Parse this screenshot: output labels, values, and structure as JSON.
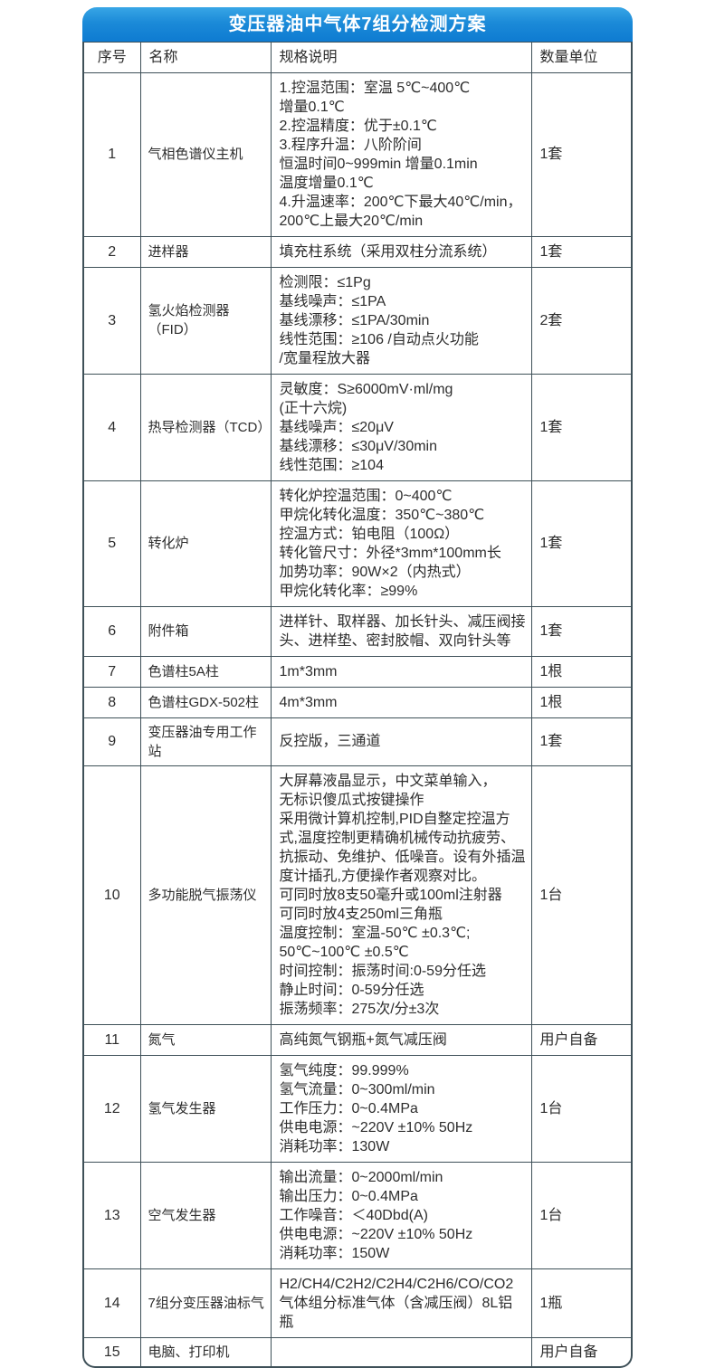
{
  "title": "变压器油中气体7组分检测方案",
  "columns": {
    "no": "序号",
    "name": "名称",
    "spec": "规格说明",
    "qty": "数量单位"
  },
  "colors": {
    "header_blue_top": "#38a6e6",
    "header_blue_bottom": "#0e7bd1",
    "grid_line": "#3e5058",
    "title_text": "#ffffff",
    "body_text": "#2d2d2d"
  },
  "rows": [
    {
      "no": "1",
      "name": "气相色谱仪主机",
      "spec": "1.控温范围：室温 5℃~400℃\n增量0.1℃\n2.控温精度：优于±0.1℃\n3.程序升温：八阶阶间\n恒温时间0~999min 增量0.1min\n温度增量0.1℃\n4.升温速率：200℃下最大40℃/min，\n200℃上最大20℃/min",
      "qty": "1套"
    },
    {
      "no": "2",
      "name": "进样器",
      "spec": "填充柱系统（采用双柱分流系统）",
      "qty": "1套"
    },
    {
      "no": "3",
      "name": "氢火焰检测器（FID）",
      "spec": "检测限：≤1Pg\n基线噪声：≤1PA\n基线漂移：≤1PA/30min\n线性范围：≥106 /自动点火功能\n/宽量程放大器",
      "qty": "2套"
    },
    {
      "no": "4",
      "name": "热导检测器（TCD）",
      "spec": "灵敏度：S≥6000mV·ml/mg\n(正十六烷)\n基线噪声：≤20μV\n基线漂移：≤30μV/30min\n线性范围：≥104",
      "qty": "1套"
    },
    {
      "no": "5",
      "name": "转化炉",
      "spec": "转化炉控温范围：0~400℃\n甲烷化转化温度：350℃~380℃\n控温方式：铂电阻（100Ω）\n转化管尺寸：外径*3mm*100mm长\n加势功率：90W×2（内热式）\n甲烷化转化率：≥99%",
      "qty": "1套"
    },
    {
      "no": "6",
      "name": "附件箱",
      "spec": "进样针、取样器、加长针头、减压阀接头、进样垫、密封胶帽、双向针头等",
      "qty": "1套"
    },
    {
      "no": "7",
      "name": "色谱柱5A柱",
      "spec": "1m*3mm",
      "qty": "1根"
    },
    {
      "no": "8",
      "name": "色谱柱GDX-502柱",
      "spec": "4m*3mm",
      "qty": "1根"
    },
    {
      "no": "9",
      "name": "变压器油专用工作站",
      "spec": "反控版，三通道",
      "qty": "1套"
    },
    {
      "no": "10",
      "name": "多功能脱气振荡仪",
      "spec": "大屏幕液晶显示，中文菜单输入，\n无标识傻瓜式按键操作\n采用微计算机控制,PID自整定控温方式,温度控制更精确机械传动抗疲劳、抗振动、免维护、低噪音。设有外插温度计插孔,方便操作者观察对比。\n可同时放8支50毫升或100ml注射器\n可同时放4支250ml三角瓶\n温度控制：室温-50℃ ±0.3℃;\n 50℃~100℃ ±0.5℃\n时间控制：振荡时间:0-59分任选\n静止时间：0-59分任选\n振荡频率：275次/分±3次",
      "qty": "1台"
    },
    {
      "no": "11",
      "name": "氮气",
      "spec": "高纯氮气钢瓶+氮气减压阀",
      "qty": "用户自备"
    },
    {
      "no": "12",
      "name": "氢气发生器",
      "spec": "氢气纯度：99.999%\n氢气流量：0~300ml/min\n工作压力：0~0.4MPa\n供电电源：~220V ±10% 50Hz\n消耗功率：130W",
      "qty": "1台"
    },
    {
      "no": "13",
      "name": "空气发生器",
      "spec": "输出流量：0~2000ml/min\n输出压力：0~0.4MPa\n工作噪音：＜40Dbd(A)\n供电电源：~220V ±10% 50Hz\n消耗功率：150W",
      "qty": "1台"
    },
    {
      "no": "14",
      "name": "7组分变压器油标气",
      "spec": "H2/CH4/C2H2/C2H4/C2H6/CO/CO2\n气体组分标准气体（含减压阀）8L铝瓶",
      "qty": "1瓶"
    },
    {
      "no": "15",
      "name": "电脑、打印机",
      "spec": "",
      "qty": "用户自备"
    }
  ]
}
